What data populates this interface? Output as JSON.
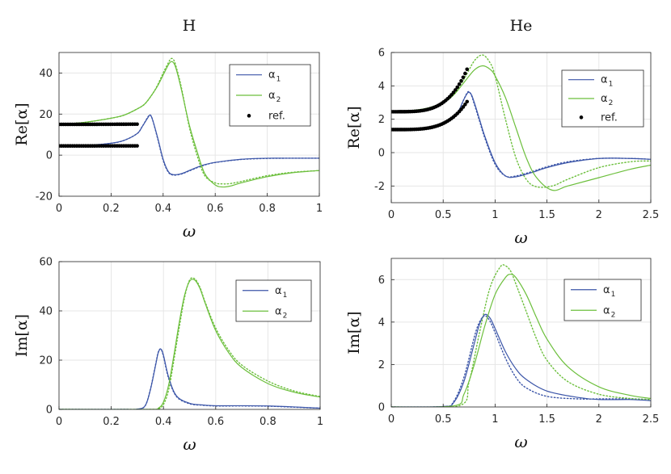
{
  "colors": {
    "alpha1": "#3b55a8",
    "alpha2": "#6cbf3c",
    "ref": "#000000",
    "grid": "#e6e6e6",
    "axis": "#262626"
  },
  "chart_data": [
    {
      "id": "H-re",
      "type": "line",
      "title": "H",
      "xlabel": "ω",
      "ylabel_main": "Re",
      "ylabel_bracket": "[α]",
      "xlim": [
        0,
        1
      ],
      "ylim": [
        -20,
        50
      ],
      "xticks": [
        0,
        0.2,
        0.4,
        0.6,
        0.8,
        1
      ],
      "xtick_labels": [
        "0",
        "0.2",
        "0.4",
        "0.6",
        "0.8",
        "1"
      ],
      "yticks": [
        -20,
        0,
        20,
        40
      ],
      "ytick_labels": [
        "-20",
        "0",
        "20",
        "40"
      ],
      "legend": {
        "position": "top-right",
        "entries": [
          {
            "name": "α",
            "sub": "1",
            "kind": "line",
            "series": "alpha1"
          },
          {
            "name": "α",
            "sub": "2",
            "kind": "line",
            "series": "alpha2"
          },
          {
            "name": "ref.",
            "kind": "dot"
          }
        ]
      },
      "series": [
        {
          "name": "alpha1",
          "style": "solid",
          "x": [
            0,
            0.1,
            0.2,
            0.25,
            0.3,
            0.32,
            0.34,
            0.35,
            0.36,
            0.38,
            0.4,
            0.42,
            0.44,
            0.47,
            0.5,
            0.55,
            0.6,
            0.7,
            0.8,
            0.9,
            1.0
          ],
          "y": [
            4.5,
            4.7,
            5.8,
            7.2,
            10.5,
            14,
            18,
            19.5,
            17,
            8,
            -2,
            -8,
            -9.5,
            -9,
            -7.5,
            -5,
            -3.5,
            -2,
            -1.5,
            -1.5,
            -1.5
          ]
        },
        {
          "name": "alpha1",
          "style": "dotted",
          "x": [
            0,
            0.1,
            0.2,
            0.25,
            0.3,
            0.32,
            0.34,
            0.35,
            0.36,
            0.38,
            0.4,
            0.42,
            0.44,
            0.47,
            0.5,
            0.55,
            0.6,
            0.7,
            0.8,
            0.9,
            1.0
          ],
          "y": [
            4.5,
            4.7,
            5.8,
            7.2,
            10.5,
            14,
            18.3,
            19.6,
            17,
            7.5,
            -2.5,
            -8.3,
            -9.7,
            -9.2,
            -7.7,
            -5.2,
            -3.6,
            -2.1,
            -1.6,
            -1.5,
            -1.5
          ]
        },
        {
          "name": "alpha2",
          "style": "solid",
          "x": [
            0,
            0.1,
            0.2,
            0.25,
            0.3,
            0.33,
            0.36,
            0.38,
            0.4,
            0.42,
            0.43,
            0.44,
            0.45,
            0.47,
            0.5,
            0.53,
            0.56,
            0.6,
            0.63,
            0.66,
            0.7,
            0.8,
            0.9,
            1.0
          ],
          "y": [
            15,
            16,
            18,
            19.5,
            22.5,
            25,
            30,
            34,
            39,
            44,
            45.5,
            45,
            42,
            32,
            15,
            2,
            -9,
            -14.5,
            -15.5,
            -15,
            -13.5,
            -10.5,
            -8.5,
            -7.5
          ]
        },
        {
          "name": "alpha2",
          "style": "dotted",
          "x": [
            0,
            0.1,
            0.2,
            0.25,
            0.3,
            0.33,
            0.36,
            0.38,
            0.4,
            0.42,
            0.43,
            0.44,
            0.45,
            0.47,
            0.5,
            0.53,
            0.56,
            0.6,
            0.63,
            0.66,
            0.7,
            0.8,
            0.9,
            1.0
          ],
          "y": [
            15,
            16,
            18,
            19.5,
            22.5,
            25,
            30,
            34.5,
            40,
            45,
            47,
            46.5,
            43,
            33,
            14,
            0,
            -10,
            -13.5,
            -14,
            -13.8,
            -12.8,
            -10,
            -8.3,
            -7.5
          ]
        }
      ],
      "ref_points": {
        "alpha1": {
          "y0": 4.5,
          "a": 0.0028,
          "p": 2.0,
          "from": 0.0,
          "to": 0.3,
          "n": 36
        },
        "alpha2": {
          "y0": 15.0,
          "a": 0.011,
          "p": 2.0,
          "from": 0.0,
          "to": 0.3,
          "n": 36
        }
      }
    },
    {
      "id": "He-re",
      "type": "line",
      "title": "He",
      "xlabel": "ω",
      "ylabel_main": "Re",
      "ylabel_bracket": "[α]",
      "xlim": [
        0,
        2.5
      ],
      "ylim": [
        -3,
        6
      ],
      "xticks": [
        0,
        0.5,
        1,
        1.5,
        2,
        2.5
      ],
      "xtick_labels": [
        "0",
        "0.5",
        "1",
        "1.5",
        "2",
        "2.5"
      ],
      "yticks": [
        -2,
        0,
        2,
        4,
        6
      ],
      "ytick_labels": [
        "-2",
        "0",
        "2",
        "4",
        "6"
      ],
      "legend": {
        "position": "top-right",
        "entries": [
          {
            "name": "α",
            "sub": "1",
            "kind": "line",
            "series": "alpha1"
          },
          {
            "name": "α",
            "sub": "2",
            "kind": "line",
            "series": "alpha2"
          },
          {
            "name": "ref.",
            "kind": "dot"
          }
        ]
      },
      "series": [
        {
          "name": "alpha1",
          "style": "solid",
          "x": [
            0,
            0.3,
            0.5,
            0.6,
            0.65,
            0.7,
            0.74,
            0.77,
            0.8,
            0.85,
            0.9,
            1.0,
            1.1,
            1.2,
            1.35,
            1.5,
            1.7,
            2.0,
            2.3,
            2.5
          ],
          "y": [
            1.38,
            1.48,
            1.75,
            2.1,
            2.5,
            3.2,
            3.6,
            3.5,
            3.0,
            2.0,
            1.0,
            -0.6,
            -1.4,
            -1.45,
            -1.2,
            -0.9,
            -0.6,
            -0.35,
            -0.35,
            -0.4
          ]
        },
        {
          "name": "alpha1",
          "style": "dotted",
          "x": [
            0,
            0.3,
            0.5,
            0.6,
            0.65,
            0.7,
            0.74,
            0.77,
            0.8,
            0.85,
            0.9,
            1.0,
            1.1,
            1.2,
            1.35,
            1.5,
            1.7,
            2.0,
            2.3,
            2.5
          ],
          "y": [
            1.38,
            1.48,
            1.75,
            2.1,
            2.5,
            3.2,
            3.65,
            3.45,
            2.9,
            1.9,
            0.9,
            -0.7,
            -1.4,
            -1.4,
            -1.15,
            -0.85,
            -0.55,
            -0.35,
            -0.35,
            -0.4
          ]
        },
        {
          "name": "alpha2",
          "style": "solid",
          "x": [
            0,
            0.3,
            0.5,
            0.6,
            0.7,
            0.8,
            0.88,
            0.95,
            1.0,
            1.1,
            1.2,
            1.3,
            1.4,
            1.55,
            1.7,
            2.0,
            2.3,
            2.5
          ],
          "y": [
            2.45,
            2.6,
            3.0,
            3.45,
            4.2,
            4.95,
            5.2,
            5.0,
            4.6,
            3.3,
            1.5,
            -0.3,
            -1.5,
            -2.25,
            -2.0,
            -1.5,
            -1.0,
            -0.75
          ]
        },
        {
          "name": "alpha2",
          "style": "dotted",
          "x": [
            0,
            0.3,
            0.5,
            0.6,
            0.7,
            0.8,
            0.88,
            0.95,
            1.0,
            1.1,
            1.2,
            1.3,
            1.4,
            1.55,
            1.7,
            2.0,
            2.3,
            2.5
          ],
          "y": [
            2.45,
            2.6,
            3.0,
            3.5,
            4.4,
            5.5,
            5.85,
            5.4,
            4.6,
            2.0,
            -0.3,
            -1.6,
            -2.05,
            -2.0,
            -1.6,
            -0.9,
            -0.55,
            -0.5
          ]
        }
      ],
      "ref_points": {
        "alpha1": {
          "y0": 1.38,
          "a": 2.3,
          "p": 4.0,
          "from": 0.0,
          "to": 0.73,
          "n": 40
        },
        "alpha2": {
          "y0": 2.45,
          "a": 3.5,
          "p": 4.0,
          "from": 0.0,
          "to": 0.73,
          "n": 40
        }
      }
    },
    {
      "id": "H-im",
      "type": "line",
      "title": "",
      "xlabel": "ω",
      "ylabel_main": "Im",
      "ylabel_bracket": "[α]",
      "xlim": [
        0,
        1
      ],
      "ylim": [
        0,
        60
      ],
      "xticks": [
        0,
        0.2,
        0.4,
        0.6,
        0.8,
        1
      ],
      "xtick_labels": [
        "0",
        "0.2",
        "0.4",
        "0.6",
        "0.8",
        "1"
      ],
      "yticks": [
        0,
        20,
        40,
        60
      ],
      "ytick_labels": [
        "0",
        "20",
        "40",
        "60"
      ],
      "legend": {
        "position": "top-right",
        "entries": [
          {
            "name": "α",
            "sub": "1",
            "kind": "line",
            "series": "alpha1"
          },
          {
            "name": "α",
            "sub": "2",
            "kind": "line",
            "series": "alpha2"
          }
        ]
      },
      "series": [
        {
          "name": "alpha1",
          "style": "solid",
          "x": [
            0,
            0.25,
            0.3,
            0.33,
            0.35,
            0.37,
            0.38,
            0.39,
            0.4,
            0.42,
            0.45,
            0.5,
            0.55,
            0.6,
            0.7,
            0.8,
            0.9,
            1.0
          ],
          "y": [
            0,
            0,
            0.1,
            1.5,
            8,
            18,
            23,
            24.5,
            22,
            13,
            5.5,
            2.5,
            1.8,
            1.5,
            1.5,
            1.4,
            1.0,
            0.5
          ]
        },
        {
          "name": "alpha1",
          "style": "dotted",
          "x": [
            0,
            0.25,
            0.3,
            0.33,
            0.35,
            0.37,
            0.38,
            0.39,
            0.4,
            0.42,
            0.45,
            0.5,
            0.55,
            0.6,
            0.7,
            0.8,
            0.9,
            1.0
          ],
          "y": [
            0,
            0,
            0.1,
            1.5,
            8.2,
            18.3,
            23.2,
            24.5,
            21.5,
            12.5,
            5.2,
            2.3,
            1.7,
            1.4,
            1.4,
            1.3,
            0.9,
            0.5
          ]
        },
        {
          "name": "alpha2",
          "style": "solid",
          "x": [
            0,
            0.35,
            0.38,
            0.4,
            0.42,
            0.44,
            0.46,
            0.48,
            0.5,
            0.52,
            0.54,
            0.56,
            0.6,
            0.65,
            0.7,
            0.8,
            0.9,
            1.0
          ],
          "y": [
            0,
            0,
            0.5,
            3,
            10,
            22,
            35,
            46,
            52,
            52.5,
            49,
            43,
            32,
            23,
            17,
            10.5,
            7,
            5
          ]
        },
        {
          "name": "alpha2",
          "style": "dotted",
          "x": [
            0,
            0.35,
            0.38,
            0.4,
            0.42,
            0.44,
            0.46,
            0.48,
            0.5,
            0.52,
            0.54,
            0.56,
            0.6,
            0.65,
            0.7,
            0.8,
            0.9,
            1.0
          ],
          "y": [
            0,
            0,
            0.3,
            2,
            8,
            20,
            33,
            45,
            52.5,
            53,
            49.5,
            43.5,
            33,
            24,
            18,
            11.5,
            7.5,
            5.2
          ]
        }
      ]
    },
    {
      "id": "He-im",
      "type": "line",
      "title": "",
      "xlabel": "ω",
      "ylabel_main": "Im",
      "ylabel_bracket": "[α]",
      "xlim": [
        0,
        2.5
      ],
      "ylim": [
        0,
        7
      ],
      "xticks": [
        0,
        0.5,
        1,
        1.5,
        2,
        2.5
      ],
      "xtick_labels": [
        "0",
        "0.5",
        "1",
        "1.5",
        "2",
        "2.5"
      ],
      "yticks": [
        0,
        2,
        4,
        6
      ],
      "ytick_labels": [
        "0",
        "2",
        "4",
        "6"
      ],
      "legend": {
        "position": "top-right",
        "entries": [
          {
            "name": "α",
            "sub": "1",
            "kind": "line",
            "series": "alpha1"
          },
          {
            "name": "α",
            "sub": "2",
            "kind": "line",
            "series": "alpha2"
          }
        ]
      },
      "series": [
        {
          "name": "alpha1",
          "style": "solid",
          "x": [
            0,
            0.5,
            0.6,
            0.7,
            0.8,
            0.85,
            0.9,
            0.95,
            1.0,
            1.1,
            1.2,
            1.3,
            1.5,
            1.8,
            2.0,
            2.3,
            2.5
          ],
          "y": [
            0,
            0.02,
            0.2,
            1.2,
            3.0,
            3.9,
            4.35,
            4.2,
            3.7,
            2.6,
            1.8,
            1.3,
            0.75,
            0.45,
            0.35,
            0.35,
            0.3
          ]
        },
        {
          "name": "alpha1",
          "style": "dotted",
          "x": [
            0,
            0.5,
            0.6,
            0.7,
            0.8,
            0.85,
            0.9,
            0.95,
            1.0,
            1.1,
            1.2,
            1.3,
            1.5,
            1.8,
            2.0,
            2.3,
            2.5
          ],
          "y": [
            0,
            0.02,
            0.25,
            1.4,
            3.3,
            4.0,
            4.3,
            4.05,
            3.5,
            2.3,
            1.4,
            0.9,
            0.5,
            0.38,
            0.38,
            0.38,
            0.35
          ]
        },
        {
          "name": "alpha2",
          "style": "solid",
          "x": [
            0,
            0.6,
            0.7,
            0.8,
            0.9,
            1.0,
            1.1,
            1.15,
            1.2,
            1.3,
            1.4,
            1.5,
            1.7,
            2.0,
            2.3,
            2.5
          ],
          "y": [
            0,
            0.05,
            0.6,
            2.0,
            3.8,
            5.3,
            6.1,
            6.25,
            6.1,
            5.3,
            4.2,
            3.2,
            1.9,
            0.95,
            0.55,
            0.4
          ]
        },
        {
          "name": "alpha2",
          "style": "dotted",
          "x": [
            0,
            0.65,
            0.75,
            0.85,
            0.95,
            1.05,
            1.1,
            1.15,
            1.2,
            1.3,
            1.4,
            1.5,
            1.7,
            2.0,
            2.3,
            2.5
          ],
          "y": [
            0,
            0.05,
            1.2,
            3.5,
            5.6,
            6.6,
            6.65,
            6.4,
            5.8,
            4.5,
            3.2,
            2.2,
            1.2,
            0.6,
            0.4,
            0.35
          ]
        }
      ]
    }
  ]
}
